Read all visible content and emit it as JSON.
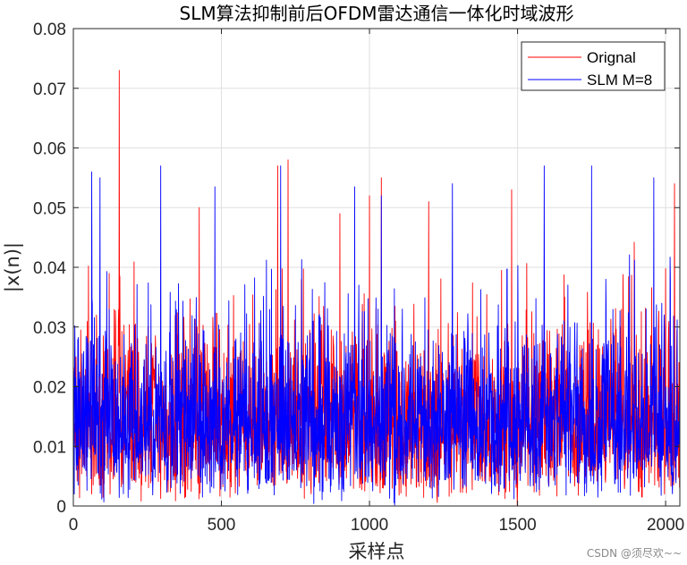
{
  "chart_data": {
    "type": "line",
    "title": "SLM算法抑制前后OFDM雷达通信一体化时域波形",
    "xlabel": "采样点",
    "ylabel": "|x(n)|",
    "xlim": [
      0,
      2048
    ],
    "ylim": [
      0,
      0.08
    ],
    "xticks": [
      0,
      500,
      1000,
      1500,
      2000
    ],
    "yticks": [
      0,
      0.01,
      0.02,
      0.03,
      0.04,
      0.05,
      0.06,
      0.07,
      0.08
    ],
    "xtick_labels": [
      "0",
      "500",
      "1000",
      "1500",
      "2000"
    ],
    "ytick_labels": [
      "0",
      "0.01",
      "0.02",
      "0.03",
      "0.04",
      "0.05",
      "0.06",
      "0.07",
      "0.08"
    ],
    "grid": true,
    "legend_position": "top-right",
    "series": [
      {
        "name": "Orignal",
        "color": "#ff0000",
        "n_samples": 2048,
        "approx_range": [
          0,
          0.073
        ],
        "peaks": [
          [
            155,
            0.073
          ],
          [
            725,
            0.058
          ],
          [
            690,
            0.057
          ],
          [
            1040,
            0.055
          ],
          [
            2030,
            0.054
          ],
          [
            1000,
            0.052
          ],
          [
            1480,
            0.053
          ],
          [
            1200,
            0.051
          ],
          [
            425,
            0.05
          ],
          [
            900,
            0.049
          ]
        ]
      },
      {
        "name": "SLM M=8",
        "color": "#0000ff",
        "n_samples": 2048,
        "approx_range": [
          0,
          0.0575
        ],
        "peaks": [
          [
            295,
            0.057
          ],
          [
            62,
            0.056
          ],
          [
            700,
            0.057
          ],
          [
            1590,
            0.057
          ],
          [
            90,
            0.055
          ],
          [
            1750,
            0.057
          ],
          [
            1280,
            0.054
          ],
          [
            478,
            0.0535
          ],
          [
            950,
            0.0535
          ],
          [
            1040,
            0.052
          ],
          [
            1960,
            0.055
          ]
        ]
      }
    ]
  },
  "watermark": "CSDN @须尽欢~~"
}
